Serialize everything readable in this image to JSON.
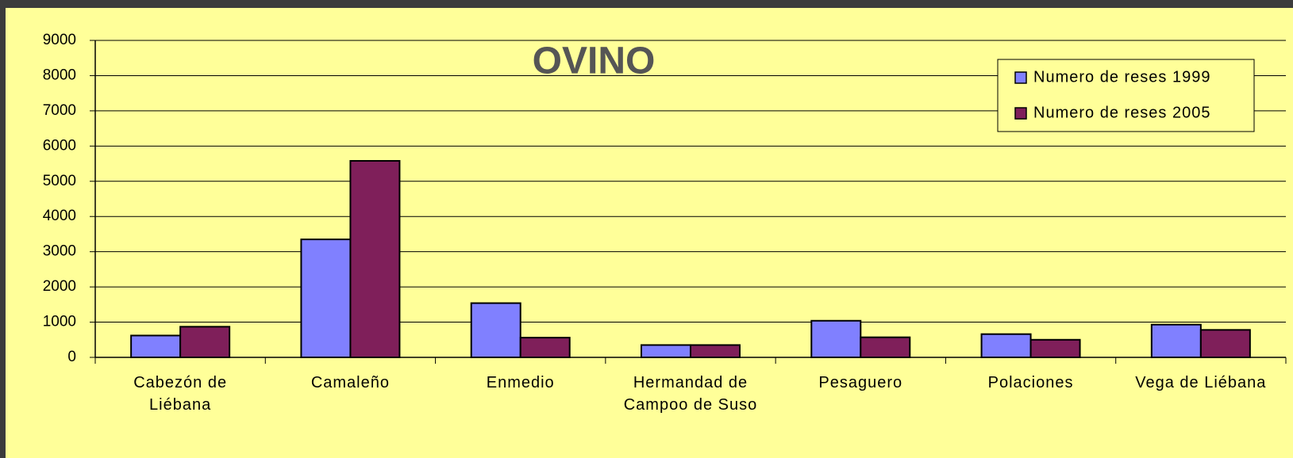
{
  "chart_data": {
    "type": "bar",
    "title": "OVINO",
    "categories": [
      "Cabezón de Liébana",
      "Camaleño",
      "Enmedio",
      "Hermandad de Campoo de Suso",
      "Pesaguero",
      "Polaciones",
      "Vega de Liébana"
    ],
    "series": [
      {
        "name": "Numero de reses 1999",
        "color": "#8080ff",
        "values": [
          620,
          3350,
          1540,
          350,
          1040,
          660,
          930
        ]
      },
      {
        "name": "Numero de reses 2005",
        "color": "#7f1f5a",
        "values": [
          870,
          5580,
          560,
          350,
          570,
          500,
          780
        ]
      }
    ],
    "ylim": [
      0,
      9000
    ],
    "yticks": [
      0,
      1000,
      2000,
      3000,
      4000,
      5000,
      6000,
      7000,
      8000,
      9000
    ],
    "grid": true,
    "legend": "top-right"
  }
}
